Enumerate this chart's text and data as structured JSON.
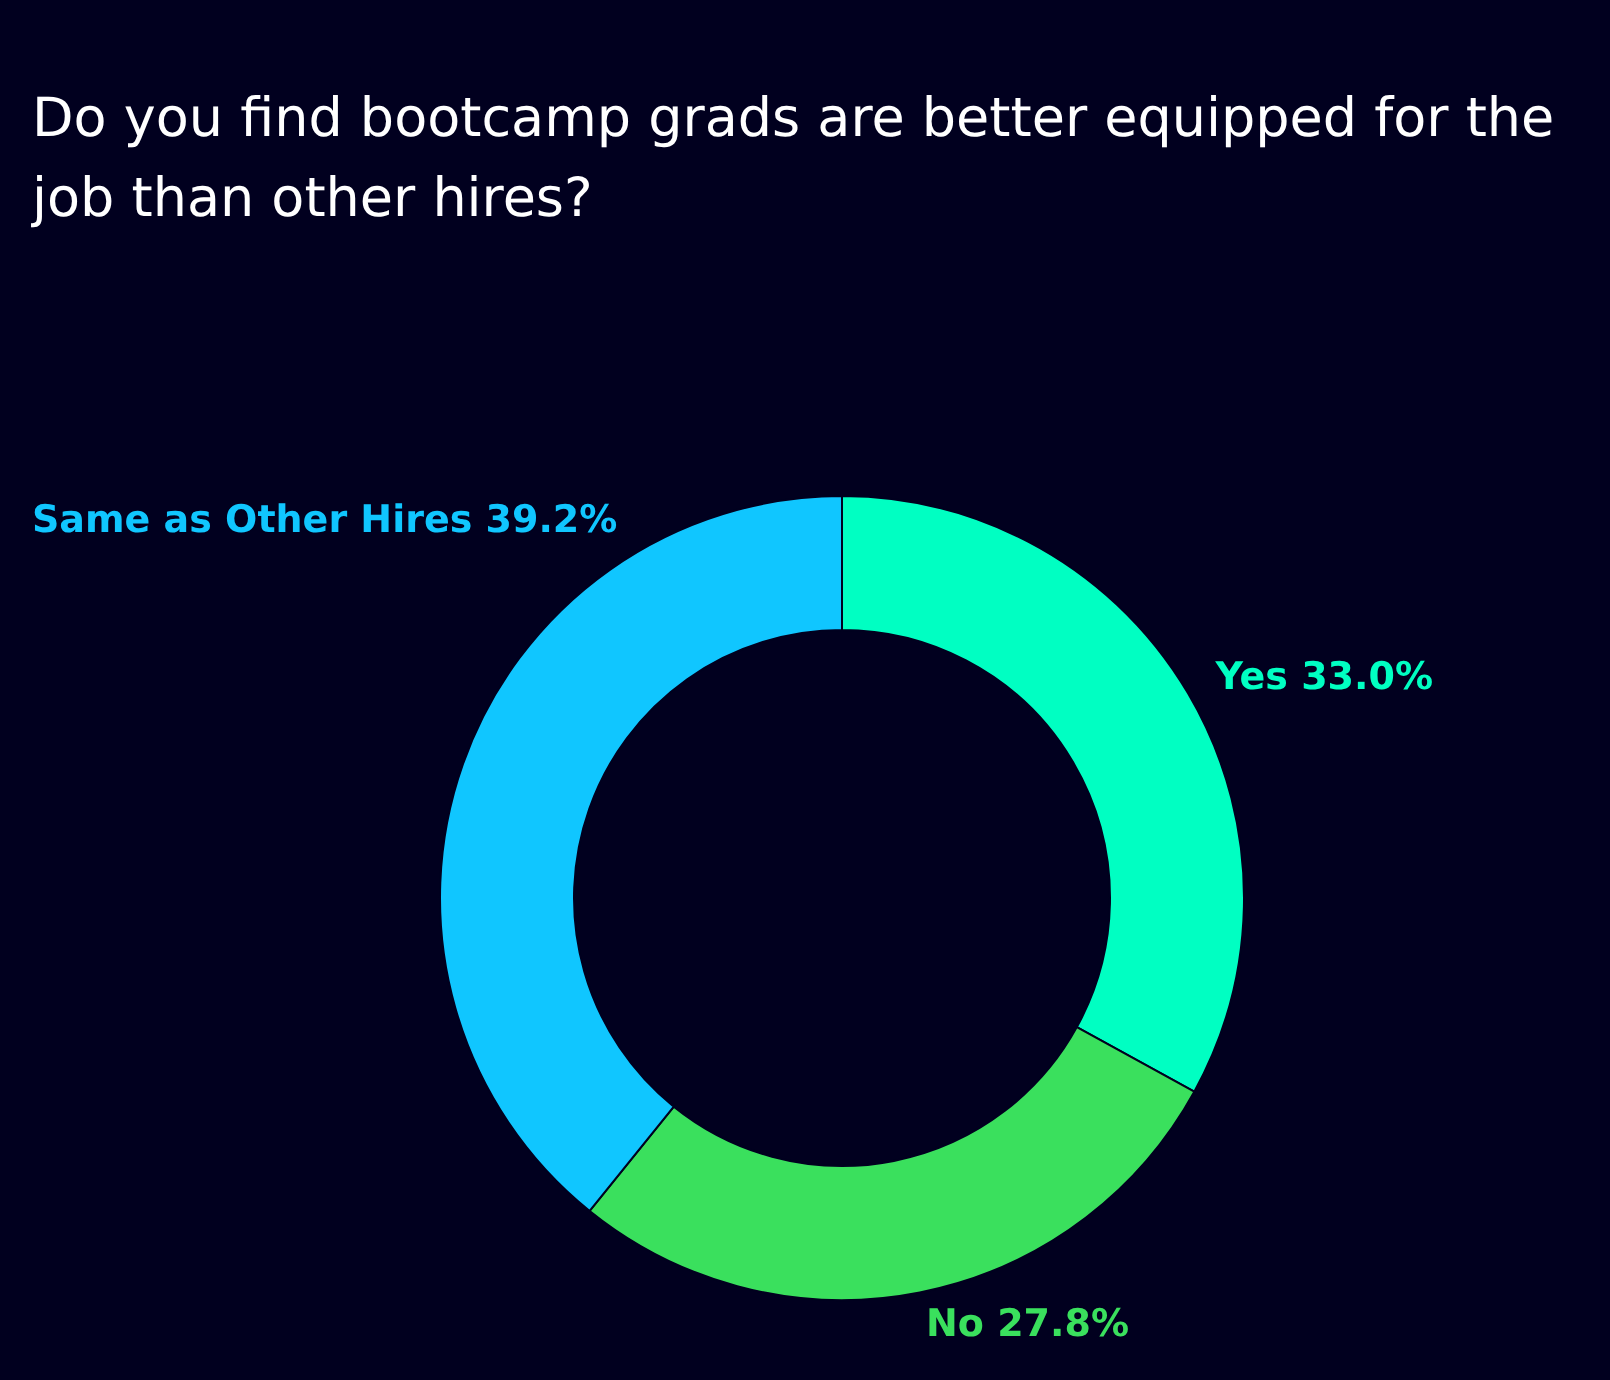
{
  "chart_data": {
    "type": "donut",
    "title": "Do you find bootcamp grads are better equipped for the job than other hires?",
    "categories": [
      "Yes",
      "No",
      "Same as Other Hires"
    ],
    "values": [
      33.0,
      27.8,
      39.2
    ],
    "colors": [
      "#00ffc2",
      "#3ae05d",
      "#10c6ff"
    ],
    "value_labels": [
      "33.0%",
      "27.8%",
      "39.2%"
    ]
  }
}
